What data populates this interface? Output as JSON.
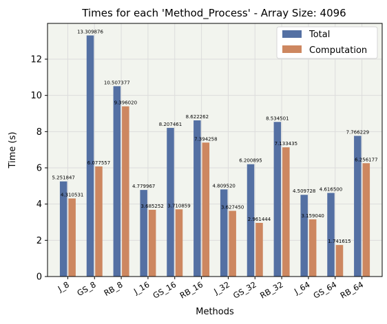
{
  "chart_data": {
    "type": "bar",
    "title": "Times for each 'Method_Process' - Array Size: 4096",
    "xlabel": "Methods",
    "ylabel": "Time (s)",
    "categories": [
      "J_8",
      "GS_8",
      "RB_8",
      "J_16",
      "GS_16",
      "RB_16",
      "J_32",
      "GS_32",
      "RB_32",
      "J_64",
      "GS_64",
      "RB_64"
    ],
    "series": [
      {
        "name": "Total",
        "color": "#5470a3",
        "values": [
          5.251847,
          13.309876,
          10.507377,
          4.779967,
          8.207461,
          8.622262,
          4.80952,
          6.200895,
          8.534501,
          4.509728,
          4.6165,
          7.766229
        ],
        "labels": [
          "5.251847",
          "13.309876",
          "10.507377",
          "4.779967",
          "8.207461",
          "8.622262",
          "4.809520",
          "6.200895",
          "8.534501",
          "4.509728",
          "4.616500",
          "7.766229"
        ]
      },
      {
        "name": "Computation",
        "color": "#cd8760",
        "values": [
          4.310531,
          6.077557,
          9.39602,
          3.685252,
          3.710859,
          7.394258,
          3.62745,
          2.961444,
          7.133435,
          3.15904,
          1.741615,
          6.256177
        ],
        "labels": [
          "4.310531",
          "6.077557",
          "9.396020",
          "3.685252",
          "3.710859",
          "7.394258",
          "3.627450",
          "2.961444",
          "7.133435",
          "3.159040",
          "1.741615",
          "6.256177"
        ]
      }
    ],
    "ylim": [
      0,
      13.975
    ],
    "yticks": [
      0,
      2,
      4,
      6,
      8,
      10,
      12
    ],
    "ytick_labels": [
      "0",
      "2",
      "4",
      "6",
      "8",
      "10",
      "12"
    ],
    "grid": true,
    "legend_position": "top-right",
    "plot_background": "#f2f4ee"
  }
}
